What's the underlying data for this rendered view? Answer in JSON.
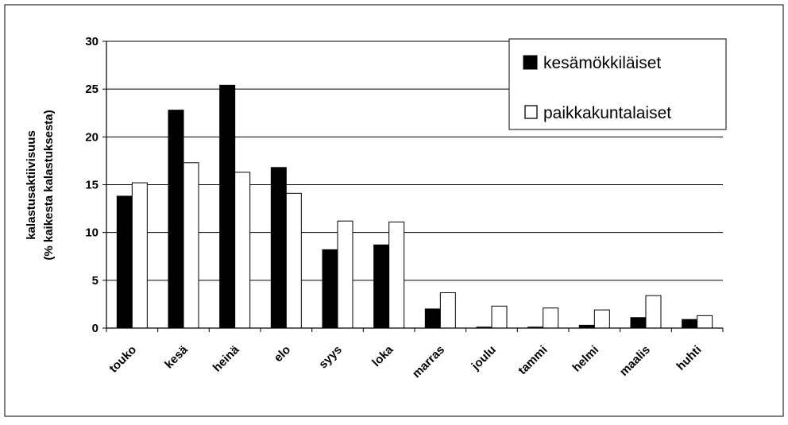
{
  "chart_data": {
    "type": "bar",
    "categories": [
      "touko",
      "kesä",
      "heinä",
      "elo",
      "syys",
      "loka",
      "marras",
      "joulu",
      "tammi",
      "helmi",
      "maalis",
      "huhti"
    ],
    "series": [
      {
        "name": "kesämökkiläiset",
        "color": "#000000",
        "values": [
          13.8,
          22.8,
          25.4,
          16.8,
          8.2,
          8.7,
          2.0,
          0.1,
          0.1,
          0.3,
          1.1,
          0.9
        ]
      },
      {
        "name": "paikkakuntalaiset",
        "color": "#ffffff",
        "values": [
          15.2,
          17.3,
          16.3,
          14.1,
          11.2,
          11.1,
          3.7,
          2.3,
          2.1,
          1.9,
          3.4,
          1.3
        ]
      }
    ],
    "title": "",
    "xlabel": "",
    "ylabel_line1": "kalastusaktiivisuus",
    "ylabel_line2": "(% kaikesta kalastuksesta)",
    "ylim": [
      0,
      30
    ],
    "yticks": [
      0,
      5,
      10,
      15,
      20,
      25,
      30
    ],
    "grid": true,
    "legend_position": "top-right"
  }
}
